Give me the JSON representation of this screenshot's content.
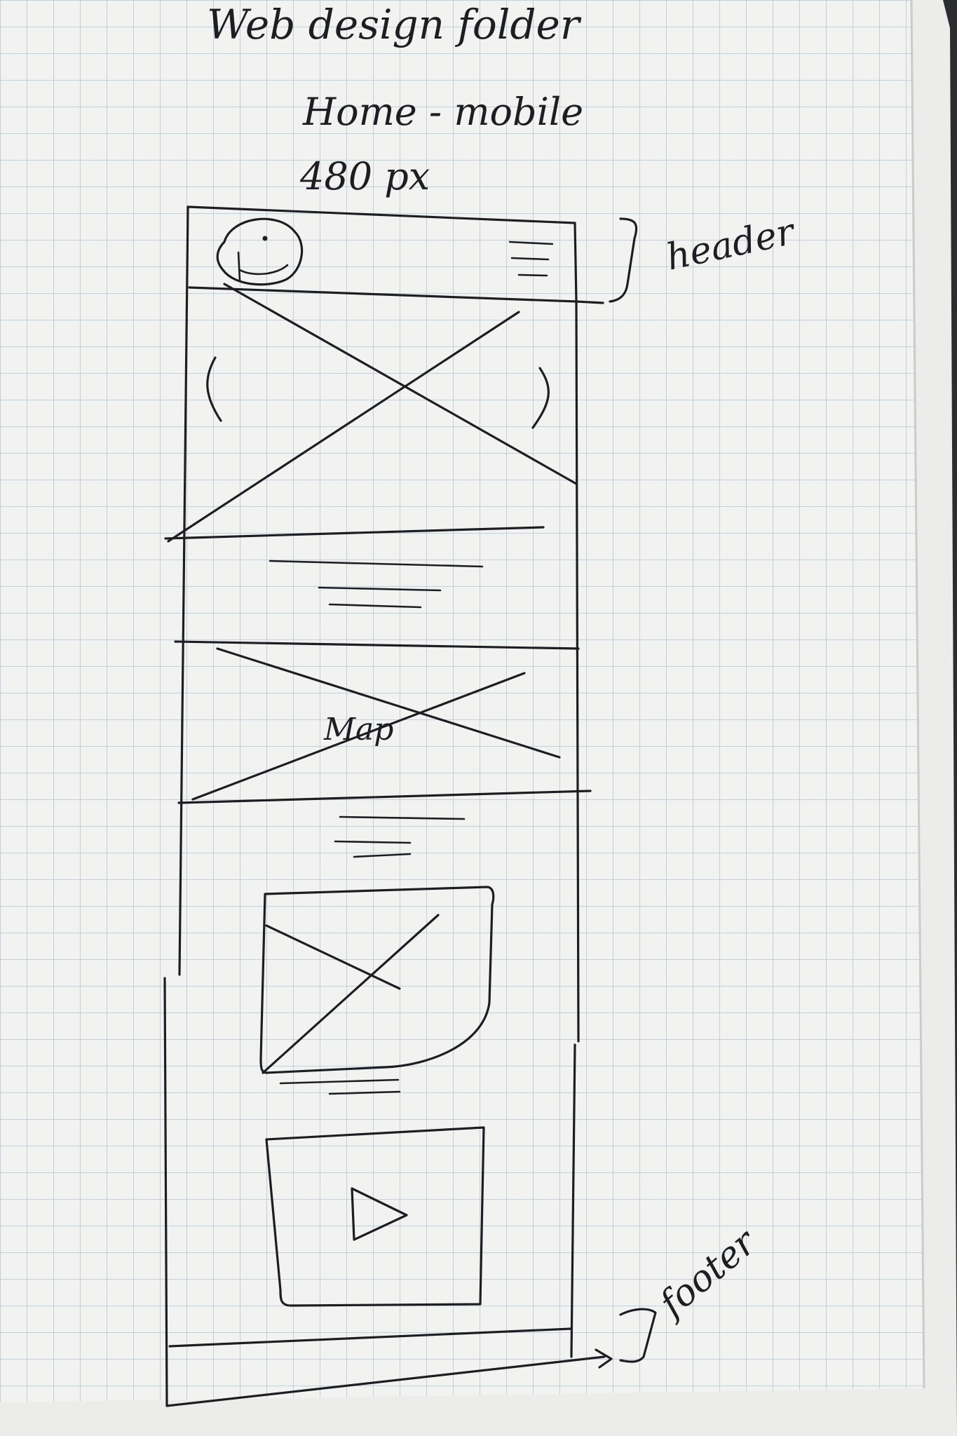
{
  "sketch": {
    "title": "Web design folder",
    "subtitle": "Home - mobile",
    "width_note": "480 px",
    "header_annotation": "header",
    "footer_annotation": "footer",
    "map_label": "Map",
    "carousel_prev_glyph": "‹",
    "carousel_next_glyph": "›"
  },
  "colors": {
    "paper": "#f2f2f1",
    "grid": "#b8c4cc",
    "ink": "#1e1e22",
    "background": "#2b2d30"
  },
  "icons": [
    "logo-icon",
    "hamburger-menu-icon",
    "chevron-left-icon",
    "chevron-right-icon",
    "play-icon"
  ]
}
